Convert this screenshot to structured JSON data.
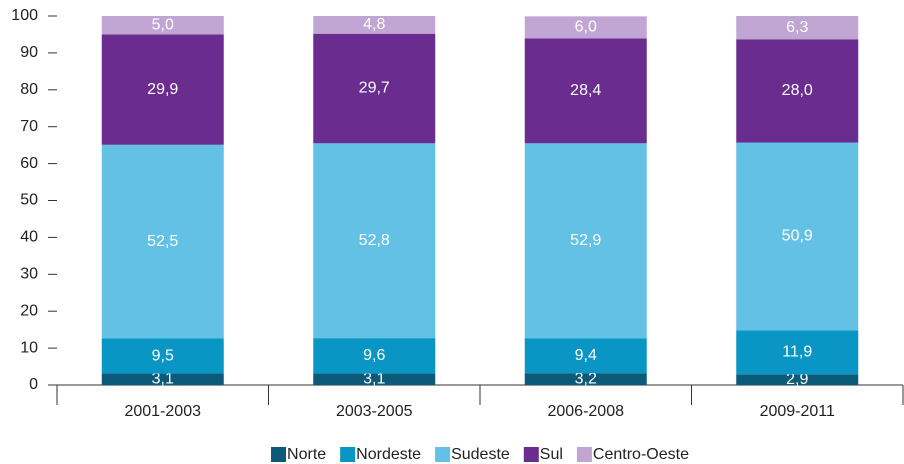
{
  "chart_data": {
    "type": "stacked_bar",
    "categories": [
      "2001-2003",
      "2003-2005",
      "2006-2008",
      "2009-2011"
    ],
    "series": [
      {
        "name": "Norte",
        "color": "#0b5a7a",
        "values": [
          3.1,
          3.1,
          3.2,
          2.9
        ],
        "value_labels": [
          "3,1",
          "3,1",
          "3,2",
          "2,9"
        ]
      },
      {
        "name": "Nordeste",
        "color": "#0a96c4",
        "values": [
          9.5,
          9.6,
          9.4,
          11.9
        ],
        "value_labels": [
          "9,5",
          "9,6",
          "9,4",
          "11,9"
        ]
      },
      {
        "name": "Sudeste",
        "color": "#63c1e6",
        "values": [
          52.5,
          52.8,
          52.9,
          50.9
        ],
        "value_labels": [
          "52,5",
          "52,8",
          "52,9",
          "50,9"
        ]
      },
      {
        "name": "Sul",
        "color": "#6a2d8f",
        "values": [
          29.9,
          29.7,
          28.4,
          28.0
        ],
        "value_labels": [
          "29,9",
          "29,7",
          "28,4",
          "28,0"
        ]
      },
      {
        "name": "Centro-Oeste",
        "color": "#c1a6d3",
        "values": [
          5.0,
          4.8,
          6.0,
          6.3
        ],
        "value_labels": [
          "5,0",
          "4,8",
          "6,0",
          "6,3"
        ]
      }
    ],
    "ylim": [
      0,
      100
    ],
    "yticks": [
      0,
      10,
      20,
      30,
      40,
      50,
      60,
      70,
      80,
      90,
      100
    ],
    "legend": "bottom"
  }
}
